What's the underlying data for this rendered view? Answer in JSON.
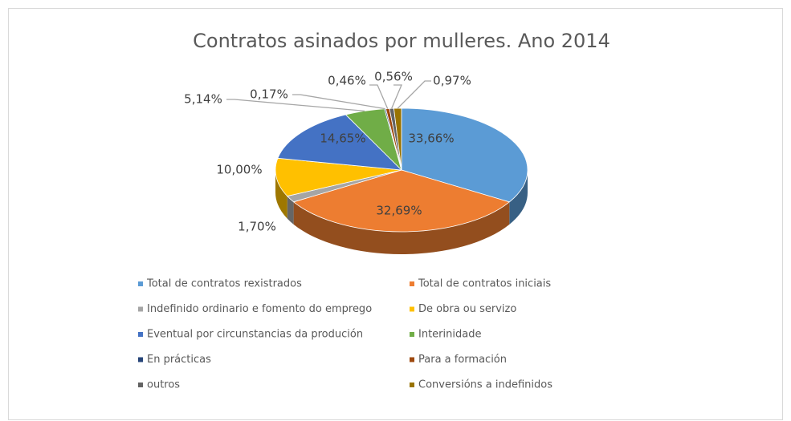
{
  "chart_data": {
    "type": "pie",
    "title": "Contratos asinados por mulleres. Ano 2014",
    "categories": [
      "Total de contratos rexistrados",
      "Total de contratos iniciais",
      "Indefinido ordinario e fomento do emprego",
      "De obra ou servizo",
      "Eventual por circunstancias da produción",
      "Interinidade",
      "En prácticas",
      "Para a formación",
      "outros",
      "Conversións a indefinidos"
    ],
    "values": [
      33.66,
      32.69,
      1.7,
      10.0,
      14.65,
      5.14,
      0.17,
      0.46,
      0.56,
      0.97
    ],
    "value_labels": [
      "33,66%",
      "32,69%",
      "1,70%",
      "10,00%",
      "14,65%",
      "5,14%",
      "0,17%",
      "0,46%",
      "0,56%",
      "0,97%"
    ],
    "colors": [
      "#5b9bd5",
      "#ed7d31",
      "#a5a5a5",
      "#ffc000",
      "#4472c4",
      "#70ad47",
      "#264478",
      "#9e480e",
      "#636363",
      "#997300"
    ],
    "legend": "bottom"
  }
}
